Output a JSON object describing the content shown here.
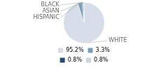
{
  "chart_data": {
    "type": "pie",
    "categories": [
      "WHITE",
      "HISPANIC",
      "ASIAN",
      "BLACK"
    ],
    "values": [
      95.2,
      3.3,
      0.8,
      0.8
    ],
    "value_labels": [
      "95.2%",
      "3.3%",
      "0.8%",
      "0.8%"
    ],
    "colors": [
      "#d6dde8",
      "#7a9bb5",
      "#2b4a6b",
      "#c8d5e0"
    ],
    "legend": "bottom"
  }
}
